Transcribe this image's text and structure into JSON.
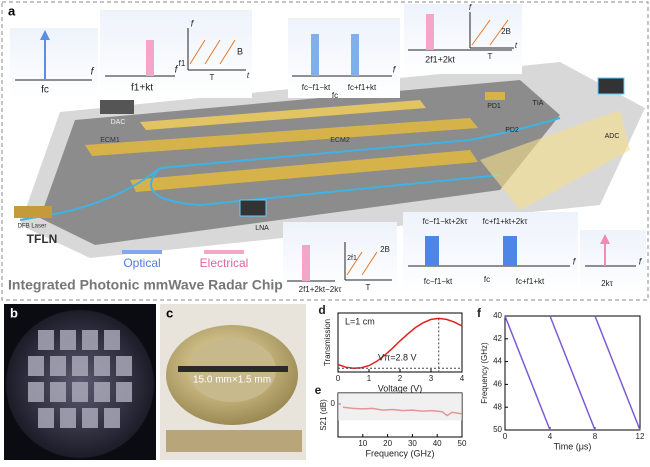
{
  "panel_a": {
    "texts": [
      "a",
      "fc",
      "f",
      "f1+kt",
      "f",
      "f",
      "f1",
      "B",
      "T",
      "t",
      "DAC",
      "fc−f1−kt",
      "fc",
      "fc+f1+kt",
      "f",
      "2f1+2kt",
      "f",
      "2B",
      "T",
      "t",
      "PD1",
      "TIA",
      "PD2",
      "ADC",
      "DFB Laser",
      "ECM1",
      "ECM2",
      "TFLN",
      "LNA",
      "Optical",
      "Electrical",
      "2f1+2kt−2kτ",
      "2B",
      "2f1",
      "T",
      "fc−f1−kt+2kτ",
      "fc+f1+kt+2kτ",
      "fc−f1−kt",
      "fc",
      "fc+f1+kt",
      "f",
      "2kτ",
      "f",
      "Integrated Photonic mmWave Radar Chip"
    ]
  },
  "panel_b": {
    "label": "b"
  },
  "panel_c": {
    "label": "c",
    "dimension": "15.0 mm×1.5 mm"
  },
  "panel_d": {
    "label": "d",
    "type": "line",
    "annotation_length": "L=1 cm",
    "annotation_vpi": "Vπ=2.8 V",
    "ylabel": "Transmission",
    "xlabel": "Voltage (V)",
    "xlim": [
      0,
      4
    ],
    "xticks": [
      0,
      1,
      2,
      3,
      4
    ],
    "ylim": [
      0,
      1.1
    ],
    "color": "#e02020",
    "x": [
      0,
      0.25,
      0.5,
      0.75,
      1,
      1.25,
      1.5,
      1.75,
      2,
      2.25,
      2.5,
      2.75,
      3,
      3.25,
      3.5,
      3.75,
      4
    ],
    "values": [
      0.14,
      0.09,
      0.07,
      0.08,
      0.12,
      0.2,
      0.31,
      0.44,
      0.58,
      0.71,
      0.83,
      0.92,
      0.98,
      1.0,
      0.98,
      0.93,
      0.86
    ]
  },
  "panel_e": {
    "label": "e",
    "type": "line",
    "ylabel": "S21 (dB)",
    "xlabel": "Frequency (GHz)",
    "xlim": [
      0,
      50
    ],
    "xticks": [
      10,
      20,
      30,
      40,
      50
    ],
    "ylim": [
      -6,
      2
    ],
    "yticks": [
      0
    ],
    "color": "#e02020",
    "x": [
      2,
      6,
      10,
      14,
      18,
      22,
      26,
      30,
      34,
      38,
      42,
      44,
      46,
      50
    ],
    "values": [
      -0.6,
      -0.8,
      -0.9,
      -0.8,
      -1.1,
      -1.0,
      -1.2,
      -1.1,
      -1.3,
      -1.2,
      -1.4,
      -2.1,
      -1.5,
      -1.8
    ]
  },
  "panel_f": {
    "label": "f",
    "type": "line",
    "ylabel": "Frequency (GHz)",
    "xlabel": "Time (μs)",
    "xlim": [
      0,
      12
    ],
    "xticks": [
      0,
      4,
      8,
      12
    ],
    "ylim": [
      40,
      50
    ],
    "yticks": [
      40,
      42,
      44,
      46,
      48,
      50
    ],
    "inverted_y": true,
    "color": "#7b5cd6",
    "x": [
      0,
      4,
      null,
      4,
      8,
      null,
      8,
      12
    ],
    "values": [
      40,
      50,
      null,
      40,
      50,
      null,
      40,
      50
    ]
  }
}
